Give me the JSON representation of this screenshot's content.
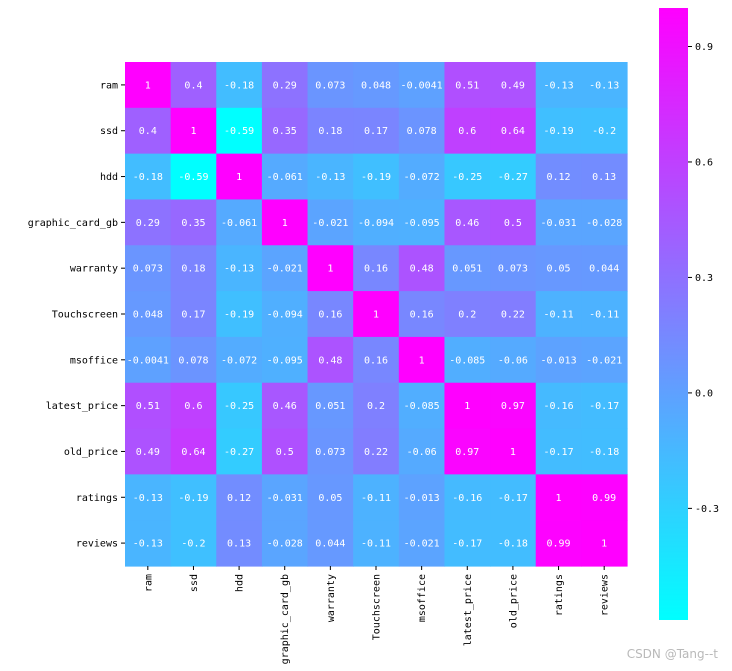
{
  "chart_data": {
    "type": "heatmap",
    "title": "",
    "xlabel": "",
    "ylabel": "",
    "rows": [
      "ram",
      "ssd",
      "hdd",
      "graphic_card_gb",
      "warranty",
      "Touchscreen",
      "msoffice",
      "latest_price",
      "old_price",
      "ratings",
      "reviews"
    ],
    "columns": [
      "ram",
      "ssd",
      "hdd",
      "graphic_card_gb",
      "warranty",
      "Touchscreen",
      "msoffice",
      "latest_price",
      "old_price",
      "ratings",
      "reviews"
    ],
    "values": [
      [
        1,
        0.4,
        -0.18,
        0.29,
        0.073,
        0.048,
        -0.0041,
        0.51,
        0.49,
        -0.13,
        -0.13
      ],
      [
        0.4,
        1,
        -0.59,
        0.35,
        0.18,
        0.17,
        0.078,
        0.6,
        0.64,
        -0.19,
        -0.2
      ],
      [
        -0.18,
        -0.59,
        1,
        -0.061,
        -0.13,
        -0.19,
        -0.072,
        -0.25,
        -0.27,
        0.12,
        0.13
      ],
      [
        0.29,
        0.35,
        -0.061,
        1,
        -0.021,
        -0.094,
        -0.095,
        0.46,
        0.5,
        -0.031,
        -0.028
      ],
      [
        0.073,
        0.18,
        -0.13,
        -0.021,
        1,
        0.16,
        0.48,
        0.051,
        0.073,
        0.05,
        0.044
      ],
      [
        0.048,
        0.17,
        -0.19,
        -0.094,
        0.16,
        1,
        0.16,
        0.2,
        0.22,
        -0.11,
        -0.11
      ],
      [
        -0.0041,
        0.078,
        -0.072,
        -0.095,
        0.48,
        0.16,
        1,
        -0.085,
        -0.06,
        -0.013,
        -0.021
      ],
      [
        0.51,
        0.6,
        -0.25,
        0.46,
        0.051,
        0.2,
        -0.085,
        1,
        0.97,
        -0.16,
        -0.17
      ],
      [
        0.49,
        0.64,
        -0.27,
        0.5,
        0.073,
        0.22,
        -0.06,
        0.97,
        1,
        -0.17,
        -0.18
      ],
      [
        -0.13,
        -0.19,
        0.12,
        -0.031,
        0.05,
        -0.11,
        -0.013,
        -0.16,
        -0.17,
        1,
        0.99
      ],
      [
        -0.13,
        -0.2,
        0.13,
        -0.028,
        0.044,
        -0.11,
        -0.021,
        -0.17,
        -0.18,
        0.99,
        1
      ]
    ],
    "value_labels": [
      [
        "1",
        "0.4",
        "-0.18",
        "0.29",
        "0.073",
        "0.048",
        "-0.0041",
        "0.51",
        "0.49",
        "-0.13",
        "-0.13"
      ],
      [
        "0.4",
        "1",
        "-0.59",
        "0.35",
        "0.18",
        "0.17",
        "0.078",
        "0.6",
        "0.64",
        "-0.19",
        "-0.2"
      ],
      [
        "-0.18",
        "-0.59",
        "1",
        "-0.061",
        "-0.13",
        "-0.19",
        "-0.072",
        "-0.25",
        "-0.27",
        "0.12",
        "0.13"
      ],
      [
        "0.29",
        "0.35",
        "-0.061",
        "1",
        "-0.021",
        "-0.094",
        "-0.095",
        "0.46",
        "0.5",
        "-0.031",
        "-0.028"
      ],
      [
        "0.073",
        "0.18",
        "-0.13",
        "-0.021",
        "1",
        "0.16",
        "0.48",
        "0.051",
        "0.073",
        "0.05",
        "0.044"
      ],
      [
        "0.048",
        "0.17",
        "-0.19",
        "-0.094",
        "0.16",
        "1",
        "0.16",
        "0.2",
        "0.22",
        "-0.11",
        "-0.11"
      ],
      [
        "-0.0041",
        "0.078",
        "-0.072",
        "-0.095",
        "0.48",
        "0.16",
        "1",
        "-0.085",
        "-0.06",
        "-0.013",
        "-0.021"
      ],
      [
        "0.51",
        "0.6",
        "-0.25",
        "0.46",
        "0.051",
        "0.2",
        "-0.085",
        "1",
        "0.97",
        "-0.16",
        "-0.17"
      ],
      [
        "0.49",
        "0.64",
        "-0.27",
        "0.5",
        "0.073",
        "0.22",
        "-0.06",
        "0.97",
        "1",
        "-0.17",
        "-0.18"
      ],
      [
        "-0.13",
        "-0.19",
        "0.12",
        "-0.031",
        "0.05",
        "-0.11",
        "-0.013",
        "-0.16",
        "-0.17",
        "1",
        "0.99"
      ],
      [
        "-0.13",
        "-0.2",
        "0.13",
        "-0.028",
        "0.044",
        "-0.11",
        "-0.021",
        "-0.17",
        "-0.18",
        "0.99",
        "1"
      ]
    ],
    "colormap": "cool",
    "colormap_start": "#00ffff",
    "colormap_end": "#ff00ff",
    "vmin": -0.59,
    "vmax": 1,
    "colorbar": {
      "ticks": [
        0.9,
        0.6,
        0.3,
        0.0,
        -0.3
      ],
      "tick_labels": [
        "0.9",
        "0.6",
        "0.3",
        "0.0",
        "-0.3"
      ],
      "placement": "right"
    },
    "annotated": true,
    "square": true
  },
  "watermark": "CSDN @Tang--t"
}
